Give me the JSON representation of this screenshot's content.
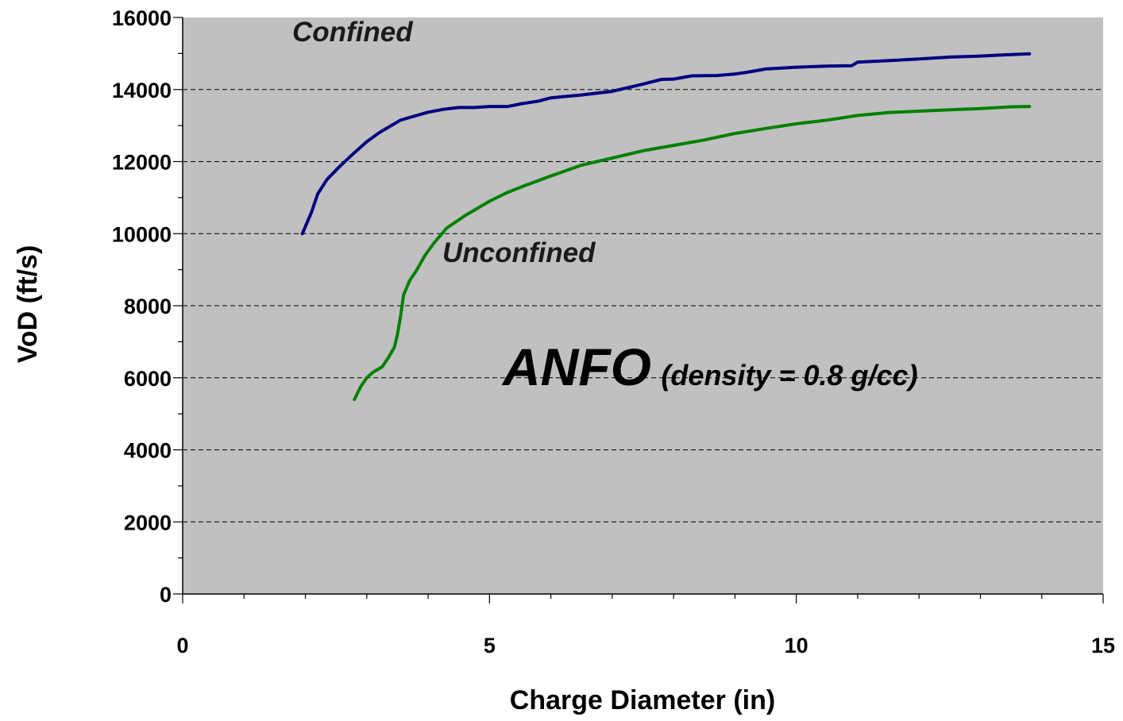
{
  "chart_data": {
    "type": "line",
    "xlabel": "Charge Diameter (in)",
    "ylabel": "VoD (ft/s)",
    "xlim": [
      0,
      15
    ],
    "ylim": [
      0,
      16000
    ],
    "x_ticks": [
      "0",
      "5",
      "10",
      "15"
    ],
    "y_ticks": [
      "0",
      "2000",
      "4000",
      "6000",
      "8000",
      "10000",
      "12000",
      "14000",
      "16000"
    ],
    "grid": "horizontal dashed",
    "background": "#c0c0c0",
    "annotations": {
      "main": "ANFO",
      "sub": "(density = 0.8 g/cc)"
    },
    "series": [
      {
        "name": "Confined",
        "color": "#000080",
        "x": [
          1.95,
          2.1,
          2.2,
          2.35,
          2.55,
          2.8,
          3.0,
          3.2,
          3.35,
          3.55,
          3.75,
          4.0,
          4.25,
          4.5,
          4.75,
          5.0,
          5.3,
          5.5,
          5.8,
          6.0,
          6.2,
          6.5,
          7.0,
          7.5,
          7.8,
          8.0,
          8.3,
          8.7,
          9.0,
          9.2,
          9.5,
          10.0,
          10.5,
          10.9,
          11.0,
          11.5,
          12.0,
          12.5,
          13.0,
          13.5,
          13.8
        ],
        "y": [
          10000,
          10600,
          11100,
          11500,
          11850,
          12250,
          12550,
          12800,
          12950,
          13150,
          13250,
          13370,
          13450,
          13500,
          13500,
          13530,
          13530,
          13600,
          13680,
          13770,
          13800,
          13850,
          13950,
          14150,
          14280,
          14290,
          14380,
          14390,
          14430,
          14480,
          14570,
          14620,
          14650,
          14660,
          14760,
          14800,
          14850,
          14900,
          14930,
          14970,
          14990
        ]
      },
      {
        "name": "Unconfined",
        "color": "#008000",
        "x": [
          2.8,
          2.9,
          3.0,
          3.1,
          3.25,
          3.35,
          3.45,
          3.5,
          3.55,
          3.6,
          3.65,
          3.7,
          3.8,
          3.95,
          4.1,
          4.3,
          4.6,
          5.0,
          5.3,
          5.6,
          6.0,
          6.5,
          7.0,
          7.5,
          8.0,
          8.5,
          9.0,
          9.5,
          10.0,
          10.5,
          11.0,
          11.5,
          12.0,
          12.5,
          13.0,
          13.5,
          13.8
        ],
        "y": [
          5400,
          5750,
          6000,
          6150,
          6300,
          6550,
          6850,
          7200,
          7700,
          8300,
          8500,
          8700,
          8950,
          9400,
          9750,
          10150,
          10500,
          10900,
          11150,
          11350,
          11600,
          11900,
          12100,
          12300,
          12450,
          12600,
          12780,
          12920,
          13050,
          13150,
          13280,
          13360,
          13400,
          13440,
          13470,
          13520,
          13530
        ]
      }
    ]
  }
}
